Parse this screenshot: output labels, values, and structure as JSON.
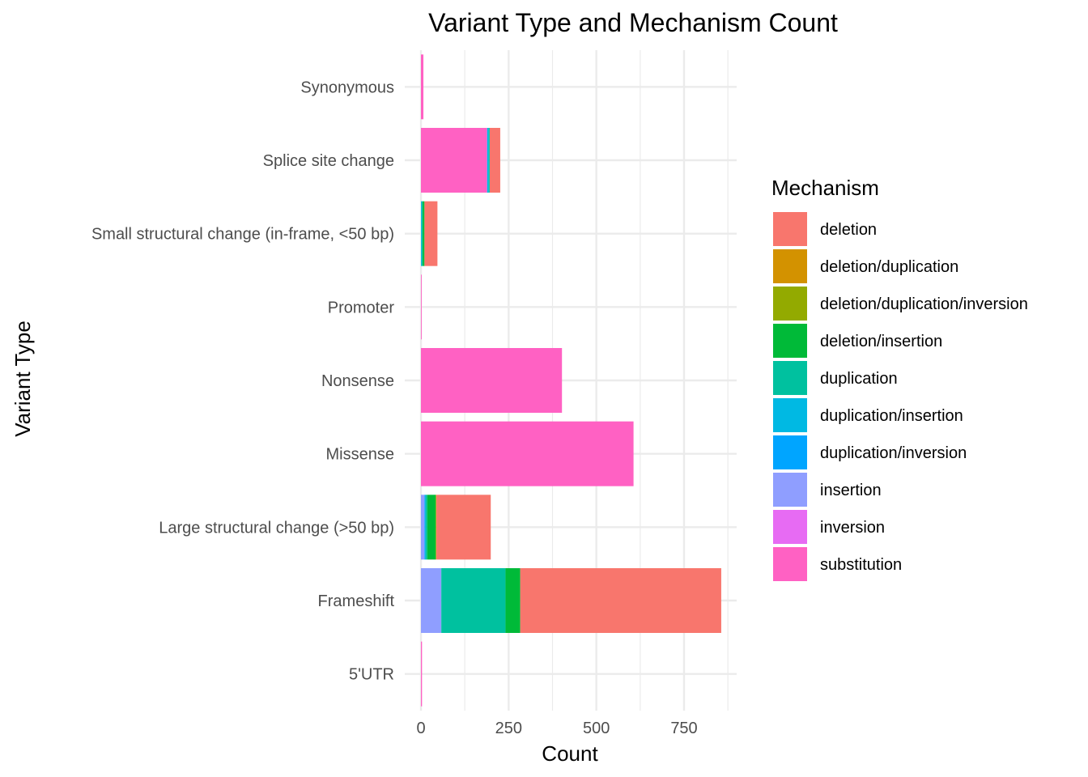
{
  "chart_data": {
    "type": "bar",
    "orientation": "horizontal",
    "stacked": true,
    "title": "Variant Type and Mechanism Count",
    "xlabel": "Count",
    "ylabel": "Variant Type",
    "xlim": [
      0,
      900
    ],
    "xticks": [
      0,
      250,
      500,
      750
    ],
    "grid": true,
    "legend_position": "right",
    "legend_title": "Mechanism",
    "categories": [
      "Synonymous",
      "Splice site change",
      "Small structural change (in-frame, <50 bp)",
      "Promoter",
      "Nonsense",
      "Missense",
      "Large structural change (>50 bp)",
      "Frameshift",
      "5'UTR"
    ],
    "series": [
      {
        "name": "deletion",
        "color": "#F8766D",
        "values": [
          0,
          30,
          37,
          0,
          0,
          0,
          155,
          573,
          0
        ]
      },
      {
        "name": "deletion/duplication",
        "color": "#D39200",
        "values": [
          0,
          0,
          0,
          0,
          0,
          0,
          0,
          0,
          0
        ]
      },
      {
        "name": "deletion/duplication/inversion",
        "color": "#93AA00",
        "values": [
          0,
          0,
          0,
          0,
          0,
          0,
          2,
          0,
          0
        ]
      },
      {
        "name": "deletion/insertion",
        "color": "#00BA38",
        "values": [
          0,
          0,
          5,
          0,
          0,
          0,
          24,
          42,
          0
        ]
      },
      {
        "name": "duplication",
        "color": "#00C19F",
        "values": [
          0,
          3,
          3,
          0,
          0,
          0,
          5,
          183,
          0
        ]
      },
      {
        "name": "duplication/insertion",
        "color": "#00B9E3",
        "values": [
          0,
          4,
          2,
          0,
          0,
          0,
          0,
          0,
          0
        ]
      },
      {
        "name": "duplication/inversion",
        "color": "#00A5FF",
        "values": [
          0,
          0,
          0,
          0,
          0,
          0,
          3,
          0,
          0
        ]
      },
      {
        "name": "insertion",
        "color": "#8F9EFF",
        "values": [
          0,
          1,
          0,
          0,
          0,
          0,
          10,
          58,
          0
        ]
      },
      {
        "name": "inversion",
        "color": "#E76BF3",
        "values": [
          0,
          0,
          0,
          0,
          0,
          0,
          0,
          0,
          0
        ]
      },
      {
        "name": "substitution",
        "color": "#FF61C3",
        "values": [
          7,
          188,
          0,
          2,
          402,
          606,
          0,
          0,
          3
        ]
      }
    ]
  }
}
